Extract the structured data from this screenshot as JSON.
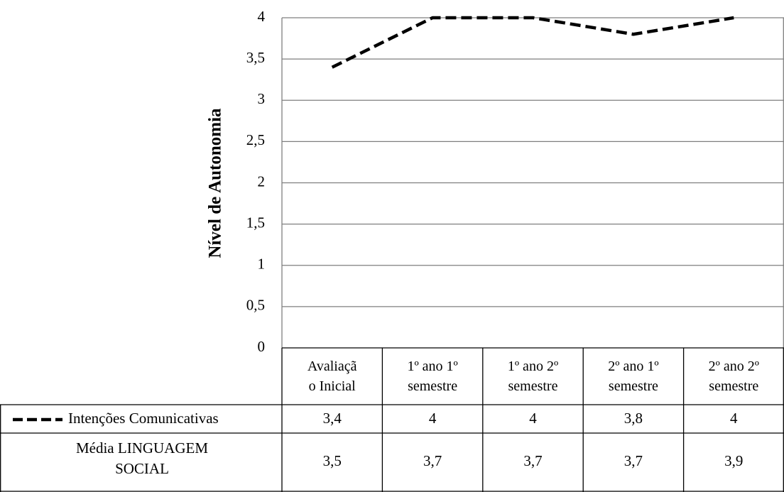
{
  "chart_data": {
    "type": "line",
    "ylabel": "Nível de Autonomia",
    "ylim": [
      0,
      4
    ],
    "yticks": [
      "0",
      "0,5",
      "1",
      "1,5",
      "2",
      "2,5",
      "3",
      "3,5",
      "4"
    ],
    "categories": [
      [
        "Avaliaçã",
        "o Inicial"
      ],
      [
        "1º ano 1º",
        "semestre"
      ],
      [
        "1º ano 2º",
        "semestre"
      ],
      [
        "2º ano 1º",
        "semestre"
      ],
      [
        "2º ano 2º",
        "semestre"
      ]
    ],
    "grid": true,
    "legend": "data-table",
    "series": [
      {
        "name": "Intenções Comunicativas",
        "values": [
          3.4,
          4,
          4,
          3.8,
          4
        ],
        "labels": [
          "3,4",
          "4",
          "4",
          "3,8",
          "4"
        ],
        "drawn": true,
        "style": "dashed",
        "color": "#000000"
      },
      {
        "name": [
          "Média LINGUAGEM",
          "SOCIAL"
        ],
        "values": [
          3.5,
          3.7,
          3.7,
          3.7,
          3.9
        ],
        "labels": [
          "3,5",
          "3,7",
          "3,7",
          "3,7",
          "3,9"
        ],
        "drawn": false
      }
    ]
  }
}
